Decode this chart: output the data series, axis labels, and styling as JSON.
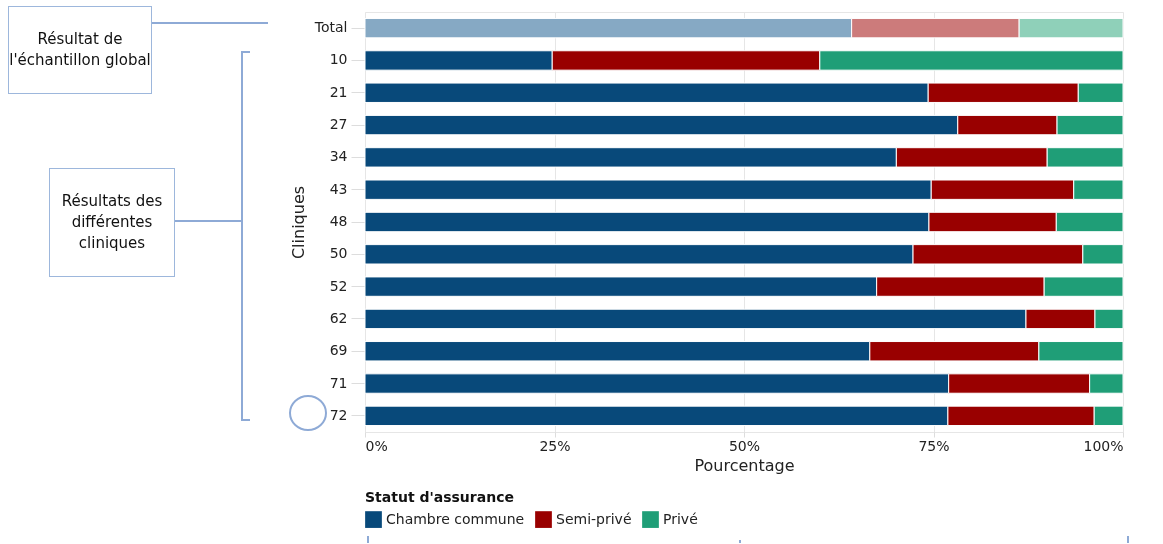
{
  "chart_data": {
    "type": "bar",
    "orientation": "horizontal",
    "stacked": true,
    "xlabel": "Pourcentage",
    "ylabel": "Cliniques",
    "legend_title": "Statut d'assurance",
    "categories": [
      "Total",
      "10",
      "21",
      "27",
      "34",
      "43",
      "48",
      "50",
      "52",
      "62",
      "69",
      "71",
      "72"
    ],
    "series": [
      {
        "name": "Chambre commune",
        "color": "#08497a",
        "colors": [
          "#86a9c4",
          "#08497a",
          "#08497a",
          "#08497a",
          "#08497a",
          "#08497a",
          "#08497a",
          "#08497a",
          "#08497a",
          "#08497a",
          "#08497a",
          "#08497a",
          "#08497a"
        ],
        "values": [
          64.2,
          24.7,
          74.3,
          78.2,
          70.1,
          74.7,
          74.4,
          72.3,
          67.5,
          87.2,
          66.6,
          77.0,
          76.9
        ]
      },
      {
        "name": "Semi-privé",
        "color": "#990000",
        "colors": [
          "#cc7b7b",
          "#990000",
          "#990000",
          "#990000",
          "#990000",
          "#990000",
          "#990000",
          "#990000",
          "#990000",
          "#990000",
          "#990000",
          "#990000",
          "#990000"
        ],
        "values": [
          22.1,
          35.3,
          19.8,
          13.1,
          19.9,
          18.8,
          16.8,
          22.4,
          22.1,
          9.1,
          22.3,
          18.6,
          19.3
        ]
      },
      {
        "name": "Privé",
        "color": "#1f9e77",
        "colors": [
          "#8fd0b9",
          "#1f9e77",
          "#1f9e77",
          "#1f9e77",
          "#1f9e77",
          "#1f9e77",
          "#1f9e77",
          "#1f9e77",
          "#1f9e77",
          "#1f9e77",
          "#1f9e77",
          "#1f9e77",
          "#1f9e77"
        ],
        "values": [
          13.7,
          40.0,
          5.9,
          8.7,
          10.0,
          6.5,
          8.8,
          5.3,
          10.4,
          3.7,
          11.1,
          4.4,
          3.8
        ]
      }
    ],
    "xlim": [
      0,
      100
    ],
    "xticks": [
      {
        "value": 0,
        "label": "0%"
      },
      {
        "value": 25,
        "label": "25%"
      },
      {
        "value": 50,
        "label": "50%"
      },
      {
        "value": 75,
        "label": "75%"
      },
      {
        "value": 100,
        "label": "100%"
      }
    ],
    "grid": "x",
    "legend": "bottom",
    "annotations": [
      "Résultat de l'échantillon global",
      "Résultats des différentes cliniques"
    ]
  }
}
